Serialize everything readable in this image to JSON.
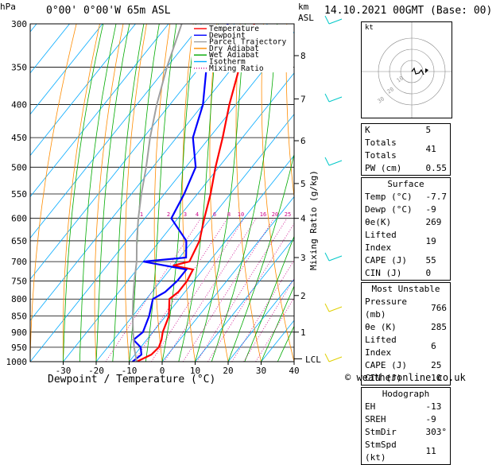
{
  "header": {
    "hpa_label": "hPa",
    "location": "0°00'  0°00'W  65m  ASL",
    "km_label": "km",
    "asl_label": "ASL",
    "datetime": "14.10.2021  00GMT  (Base: 00)"
  },
  "xaxis_label": "Dewpoint / Temperature (°C)",
  "yaxis_right_label": "Mixing Ratio (g/kg)",
  "lcl_label": "LCL",
  "footer": "© weatheronline.co.uk",
  "legend": [
    {
      "label": "Temperature",
      "color": "#ff0000",
      "style": "solid"
    },
    {
      "label": "Dewpoint",
      "color": "#0000ff",
      "style": "solid"
    },
    {
      "label": "Parcel Trajectory",
      "color": "#a0a0a0",
      "style": "solid"
    },
    {
      "label": "Dry Adiabat",
      "color": "#ff8c00",
      "style": "solid"
    },
    {
      "label": "Wet Adiabat",
      "color": "#00aa00",
      "style": "solid"
    },
    {
      "label": "Isotherm",
      "color": "#00aaff",
      "style": "solid"
    },
    {
      "label": "Mixing Ratio",
      "color": "#cc0088",
      "style": "dotted"
    }
  ],
  "mixing_ratio_labels": [
    "1",
    "2",
    "3",
    "4",
    "6",
    "8",
    "10",
    "16",
    "20",
    "25"
  ],
  "hodograph": {
    "unit_label": "kt",
    "ring_labels": [
      "10",
      "20",
      "30"
    ]
  },
  "indices": {
    "rows": [
      {
        "k": "K",
        "v": "5"
      },
      {
        "k": "Totals Totals",
        "v": "41"
      },
      {
        "k": "PW (cm)",
        "v": "0.55"
      }
    ],
    "surface_title": "Surface",
    "surface": [
      {
        "k": "Temp (°C)",
        "v": "-7.7"
      },
      {
        "k": "Dewp (°C)",
        "v": "-9"
      },
      {
        "k": "θe(K)",
        "v": "269"
      },
      {
        "k": "Lifted Index",
        "v": "19"
      },
      {
        "k": "CAPE (J)",
        "v": "55"
      },
      {
        "k": "CIN (J)",
        "v": "0"
      }
    ],
    "mu_title": "Most Unstable",
    "mu": [
      {
        "k": "Pressure (mb)",
        "v": "766"
      },
      {
        "k": "θe (K)",
        "v": "285"
      },
      {
        "k": "Lifted Index",
        "v": "6"
      },
      {
        "k": "CAPE (J)",
        "v": "25"
      },
      {
        "k": "CIN (J)",
        "v": "10"
      }
    ],
    "hodo_title": "Hodograph",
    "hodo": [
      {
        "k": "EH",
        "v": "-13"
      },
      {
        "k": "SREH",
        "v": "-9"
      },
      {
        "k": "StmDir",
        "v": "303°"
      },
      {
        "k": "StmSpd (kt)",
        "v": "11"
      }
    ]
  },
  "chart_data": {
    "type": "line",
    "title": "",
    "xlabel": "Dewpoint / Temperature (°C)",
    "ylabel": "hPa",
    "xlim": [
      -40,
      40
    ],
    "pressure_levels": [
      300,
      350,
      400,
      450,
      500,
      550,
      600,
      650,
      700,
      750,
      800,
      850,
      900,
      950,
      1000
    ],
    "x_ticks": [
      -30,
      -20,
      -10,
      0,
      10,
      20,
      30,
      40
    ],
    "km_ticks": [
      {
        "km": "1",
        "p": 900
      },
      {
        "km": "2",
        "p": 790
      },
      {
        "km": "3",
        "p": 690
      },
      {
        "km": "4",
        "p": 600
      },
      {
        "km": "5",
        "p": 530
      },
      {
        "km": "6",
        "p": 455
      },
      {
        "km": "7",
        "p": 392
      },
      {
        "km": "8",
        "p": 336
      }
    ],
    "lcl_p": 990,
    "series": [
      {
        "name": "Temperature",
        "color": "#ff0000",
        "points": [
          {
            "p": 1000,
            "t": -7.7
          },
          {
            "p": 975,
            "t": -5
          },
          {
            "p": 950,
            "t": -4.5
          },
          {
            "p": 925,
            "t": -5.5
          },
          {
            "p": 900,
            "t": -7
          },
          {
            "p": 850,
            "t": -9
          },
          {
            "p": 800,
            "t": -13
          },
          {
            "p": 780,
            "t": -12
          },
          {
            "p": 750,
            "t": -12
          },
          {
            "p": 720,
            "t": -13
          },
          {
            "p": 710,
            "t": -20
          },
          {
            "p": 700,
            "t": -16
          },
          {
            "p": 650,
            "t": -18
          },
          {
            "p": 600,
            "t": -22
          },
          {
            "p": 550,
            "t": -26
          },
          {
            "p": 500,
            "t": -31
          },
          {
            "p": 450,
            "t": -36
          },
          {
            "p": 400,
            "t": -42
          },
          {
            "p": 350,
            "t": -48
          },
          {
            "p": 300,
            "t": -54
          }
        ]
      },
      {
        "name": "Dewpoint",
        "color": "#0000ff",
        "points": [
          {
            "p": 1000,
            "t": -9
          },
          {
            "p": 975,
            "t": -8
          },
          {
            "p": 950,
            "t": -10
          },
          {
            "p": 925,
            "t": -14
          },
          {
            "p": 900,
            "t": -13
          },
          {
            "p": 850,
            "t": -15
          },
          {
            "p": 800,
            "t": -18
          },
          {
            "p": 780,
            "t": -16
          },
          {
            "p": 750,
            "t": -15
          },
          {
            "p": 720,
            "t": -15
          },
          {
            "p": 700,
            "t": -30
          },
          {
            "p": 690,
            "t": -18
          },
          {
            "p": 650,
            "t": -22
          },
          {
            "p": 600,
            "t": -32
          },
          {
            "p": 550,
            "t": -34
          },
          {
            "p": 500,
            "t": -37
          },
          {
            "p": 450,
            "t": -45
          },
          {
            "p": 400,
            "t": -50
          },
          {
            "p": 350,
            "t": -58
          },
          {
            "p": 300,
            "t": -62
          }
        ]
      },
      {
        "name": "Parcel Trajectory",
        "color": "#a0a0a0",
        "points": [
          {
            "p": 1000,
            "t": -7.7
          },
          {
            "p": 950,
            "t": -12
          },
          {
            "p": 900,
            "t": -16
          },
          {
            "p": 850,
            "t": -20
          },
          {
            "p": 800,
            "t": -24
          },
          {
            "p": 750,
            "t": -28
          },
          {
            "p": 700,
            "t": -32
          },
          {
            "p": 650,
            "t": -37
          },
          {
            "p": 600,
            "t": -42
          },
          {
            "p": 550,
            "t": -47
          },
          {
            "p": 500,
            "t": -52
          },
          {
            "p": 450,
            "t": -58
          },
          {
            "p": 400,
            "t": -64
          },
          {
            "p": 350,
            "t": -70
          },
          {
            "p": 300,
            "t": -76
          }
        ]
      }
    ],
    "mixing_ratios_gkg": [
      1,
      2,
      3,
      4,
      6,
      8,
      10,
      16,
      20,
      25
    ]
  }
}
